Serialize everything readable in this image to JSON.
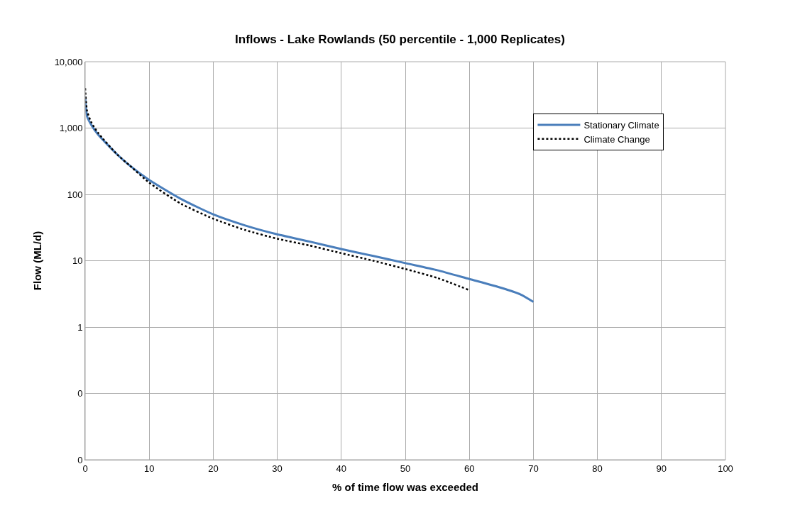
{
  "chart_data": {
    "type": "line",
    "title": "Inflows - Lake Rowlands (50 percentile - 1,000 Replicates)",
    "xlabel": "% of time flow was exceeded",
    "ylabel": "Flow (ML/d)",
    "x": [
      0,
      0.3,
      1,
      2,
      5,
      7,
      10,
      15,
      20,
      25,
      30,
      35,
      40,
      45,
      50,
      55,
      60,
      65,
      68,
      70
    ],
    "series": [
      {
        "name": "Stationary Climate",
        "color": "#4a7ebb",
        "line_style": "solid",
        "values": [
          3000,
          1500,
          1100,
          800,
          400,
          270,
          165,
          85,
          50,
          34,
          25,
          19.5,
          15,
          11.8,
          9.2,
          7.2,
          5.3,
          3.9,
          3.1,
          2.4
        ]
      },
      {
        "name": "Climate Change",
        "color": "#000000",
        "line_style": "dotted",
        "x": [
          0,
          0.3,
          1,
          2,
          5,
          7,
          10,
          15,
          20,
          25,
          30,
          35,
          40,
          45,
          50,
          55,
          60
        ],
        "values": [
          4000,
          1800,
          1200,
          850,
          400,
          270,
          150,
          72,
          43,
          29,
          21.5,
          17,
          13,
          10,
          7.5,
          5.5,
          3.6
        ]
      }
    ],
    "log": "y",
    "grid": true,
    "legend": "top right",
    "marker": "none",
    "xlim": [
      0,
      100
    ],
    "xticks": [
      0,
      10,
      20,
      30,
      40,
      50,
      60,
      70,
      80,
      90,
      100
    ],
    "ylim": [
      0.01,
      10000
    ],
    "yticks": [
      {
        "value": 0.01,
        "label": "0"
      },
      {
        "value": 0.1,
        "label": "0"
      },
      {
        "value": 1,
        "label": "1"
      },
      {
        "value": 10,
        "label": "10"
      },
      {
        "value": 100,
        "label": "100"
      },
      {
        "value": 1000,
        "label": "1,000"
      },
      {
        "value": 10000,
        "label": "10,000"
      }
    ]
  }
}
